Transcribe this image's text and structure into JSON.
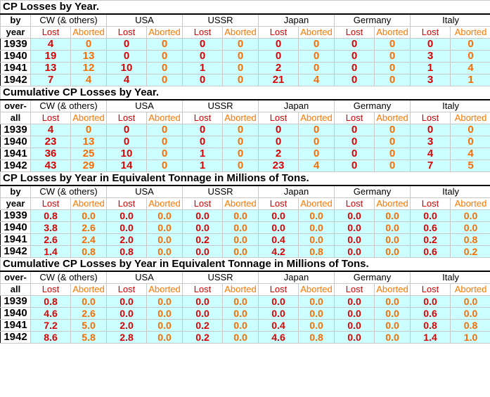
{
  "nations": [
    "CW (& others)",
    "USA",
    "USSR",
    "Japan",
    "Germany",
    "Italy"
  ],
  "col_labels": {
    "lost": "Lost",
    "aborted": "Aborted"
  },
  "sections": [
    {
      "title": "CP Losses by Year.",
      "side_top": "by",
      "side_bottom": "year",
      "rows": [
        {
          "year": "1939",
          "values": [
            "4",
            "0",
            "0",
            "0",
            "0",
            "0",
            "0",
            "0",
            "0",
            "0",
            "0",
            "0"
          ]
        },
        {
          "year": "1940",
          "values": [
            "19",
            "13",
            "0",
            "0",
            "0",
            "0",
            "0",
            "0",
            "0",
            "0",
            "3",
            "0"
          ]
        },
        {
          "year": "1941",
          "values": [
            "13",
            "12",
            "10",
            "0",
            "1",
            "0",
            "2",
            "0",
            "0",
            "0",
            "1",
            "4"
          ]
        },
        {
          "year": "1942",
          "values": [
            "7",
            "4",
            "4",
            "0",
            "0",
            "0",
            "21",
            "4",
            "0",
            "0",
            "3",
            "1"
          ]
        }
      ]
    },
    {
      "title": "Cumulative CP Losses by Year.",
      "side_top": "over-",
      "side_bottom": "all",
      "rows": [
        {
          "year": "1939",
          "values": [
            "4",
            "0",
            "0",
            "0",
            "0",
            "0",
            "0",
            "0",
            "0",
            "0",
            "0",
            "0"
          ]
        },
        {
          "year": "1940",
          "values": [
            "23",
            "13",
            "0",
            "0",
            "0",
            "0",
            "0",
            "0",
            "0",
            "0",
            "3",
            "0"
          ]
        },
        {
          "year": "1941",
          "values": [
            "36",
            "25",
            "10",
            "0",
            "1",
            "0",
            "2",
            "0",
            "0",
            "0",
            "4",
            "4"
          ]
        },
        {
          "year": "1942",
          "values": [
            "43",
            "29",
            "14",
            "0",
            "1",
            "0",
            "23",
            "4",
            "0",
            "0",
            "7",
            "5"
          ]
        }
      ]
    },
    {
      "title": "CP Losses by Year in Equivalent Tonnage in Millions of Tons.",
      "side_top": "by",
      "side_bottom": "year",
      "rows": [
        {
          "year": "1939",
          "values": [
            "0.8",
            "0.0",
            "0.0",
            "0.0",
            "0.0",
            "0.0",
            "0.0",
            "0.0",
            "0.0",
            "0.0",
            "0.0",
            "0.0"
          ]
        },
        {
          "year": "1940",
          "values": [
            "3.8",
            "2.6",
            "0.0",
            "0.0",
            "0.0",
            "0.0",
            "0.0",
            "0.0",
            "0.0",
            "0.0",
            "0.6",
            "0.0"
          ]
        },
        {
          "year": "1941",
          "values": [
            "2.6",
            "2.4",
            "2.0",
            "0.0",
            "0.2",
            "0.0",
            "0.4",
            "0.0",
            "0.0",
            "0.0",
            "0.2",
            "0.8"
          ]
        },
        {
          "year": "1942",
          "values": [
            "1.4",
            "0.8",
            "0.8",
            "0.0",
            "0.0",
            "0.0",
            "4.2",
            "0.8",
            "0.0",
            "0.0",
            "0.6",
            "0.2"
          ]
        }
      ]
    },
    {
      "title": "Cumulative CP Losses by Year in Equivalent Tonnage in Millions of Tons.",
      "side_top": "over-",
      "side_bottom": "all",
      "rows": [
        {
          "year": "1939",
          "values": [
            "0.8",
            "0.0",
            "0.0",
            "0.0",
            "0.0",
            "0.0",
            "0.0",
            "0.0",
            "0.0",
            "0.0",
            "0.0",
            "0.0"
          ]
        },
        {
          "year": "1940",
          "values": [
            "4.6",
            "2.6",
            "0.0",
            "0.0",
            "0.0",
            "0.0",
            "0.0",
            "0.0",
            "0.0",
            "0.0",
            "0.6",
            "0.0"
          ]
        },
        {
          "year": "1941",
          "values": [
            "7.2",
            "5.0",
            "2.0",
            "0.0",
            "0.2",
            "0.0",
            "0.4",
            "0.0",
            "0.0",
            "0.0",
            "0.8",
            "0.8"
          ]
        },
        {
          "year": "1942",
          "values": [
            "8.6",
            "5.8",
            "2.8",
            "0.0",
            "0.2",
            "0.0",
            "4.6",
            "0.8",
            "0.0",
            "0.0",
            "1.4",
            "1.0"
          ]
        }
      ]
    }
  ],
  "colors": {
    "cell_bg": "#ccffff",
    "lost": "#e00000",
    "aborted": "#ff6a00"
  }
}
